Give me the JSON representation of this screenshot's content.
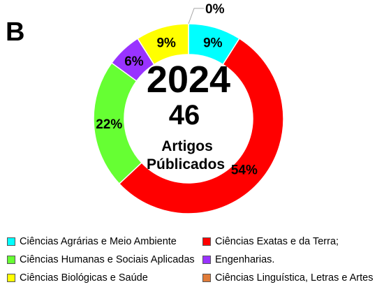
{
  "panel_label": "B",
  "center": {
    "year": "2024",
    "count": "46",
    "caption_line1": "Artigos",
    "caption_line2": "Públicados"
  },
  "chart_data": {
    "type": "pie",
    "variant": "donut",
    "start_angle_deg": 0,
    "direction": "clockwise",
    "slices": [
      {
        "name": "Ciências Agrárias e Meio Ambiente",
        "value": 9,
        "label": "9%",
        "color": "#00FFFF"
      },
      {
        "name": "Ciências Exatas e da Terra;",
        "value": 54,
        "label": "54%",
        "color": "#FF0000"
      },
      {
        "name": "Ciências Humanas e Sociais Aplicadas",
        "value": 22,
        "label": "22%",
        "color": "#66FF33"
      },
      {
        "name": "Engenharias.",
        "value": 6,
        "label": "6%",
        "color": "#9933FF"
      },
      {
        "name": "Ciências Biológicas e Saúde",
        "value": 9,
        "label": "9%",
        "color": "#FFFF00"
      },
      {
        "name": "Ciências Linguística, Letras e Artes",
        "value": 0,
        "label": "0%",
        "color": "#E07B39"
      }
    ],
    "legend_position": "bottom",
    "legend_order": [
      0,
      1,
      2,
      3,
      4,
      5
    ]
  }
}
